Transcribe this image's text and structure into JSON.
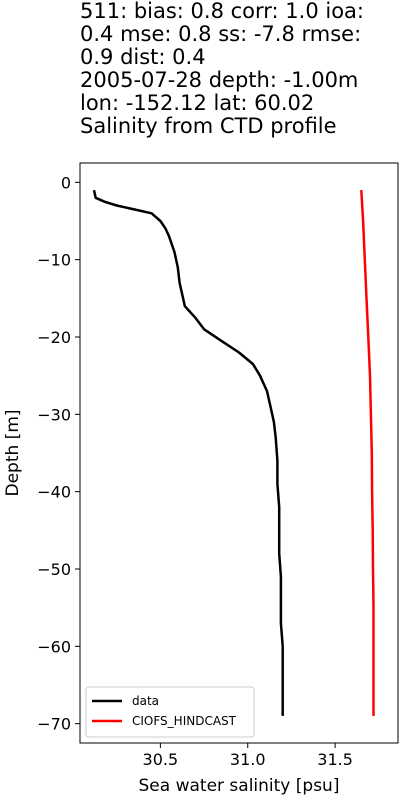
{
  "chart_data": {
    "type": "line",
    "title_lines": [
      "511: bias: 0.8  corr: 1.0  ioa:",
      "0.4  mse: 0.8  ss: -7.8  rmse:",
      "0.9  dist: 0.4",
      "2005-07-28 depth: -1.00m",
      "lon: -152.12 lat: 60.02",
      "Salinity from CTD profile"
    ],
    "xlabel": "Sea water salinity [psu]",
    "ylabel": "Depth [m]",
    "xlim": [
      30.04,
      31.86
    ],
    "ylim": [
      -72.5,
      2.5
    ],
    "x_ticks": [
      30.5,
      31.0,
      31.5
    ],
    "x_tick_labels": [
      "30.5",
      "31.0",
      "31.5"
    ],
    "y_ticks": [
      0,
      -10,
      -20,
      -30,
      -40,
      -50,
      -60,
      -70
    ],
    "y_tick_labels": [
      "0",
      "−10",
      "−20",
      "−30",
      "−40",
      "−50",
      "−60",
      "−70"
    ],
    "grid": false,
    "legend_position": "lower-left",
    "series": [
      {
        "name": "data",
        "color": "#000000",
        "points": [
          [
            30.12,
            -1
          ],
          [
            30.13,
            -2
          ],
          [
            30.18,
            -2.5
          ],
          [
            30.25,
            -3
          ],
          [
            30.35,
            -3.5
          ],
          [
            30.45,
            -4
          ],
          [
            30.5,
            -5
          ],
          [
            30.53,
            -6
          ],
          [
            30.55,
            -7
          ],
          [
            30.58,
            -9
          ],
          [
            30.6,
            -11
          ],
          [
            30.61,
            -13
          ],
          [
            30.63,
            -15
          ],
          [
            30.64,
            -16
          ],
          [
            30.7,
            -17.5
          ],
          [
            30.75,
            -19
          ],
          [
            30.85,
            -20.5
          ],
          [
            30.95,
            -22
          ],
          [
            31.03,
            -23.5
          ],
          [
            31.07,
            -25
          ],
          [
            31.11,
            -27
          ],
          [
            31.13,
            -29
          ],
          [
            31.15,
            -31
          ],
          [
            31.16,
            -33
          ],
          [
            31.17,
            -36
          ],
          [
            31.17,
            -39
          ],
          [
            31.18,
            -42
          ],
          [
            31.18,
            -45
          ],
          [
            31.18,
            -48
          ],
          [
            31.19,
            -51
          ],
          [
            31.19,
            -54
          ],
          [
            31.19,
            -57
          ],
          [
            31.2,
            -60
          ],
          [
            31.2,
            -64
          ],
          [
            31.2,
            -69
          ]
        ]
      },
      {
        "name": "CIOFS_HINDCAST",
        "color": "#ff0000",
        "points": [
          [
            31.65,
            -1
          ],
          [
            31.66,
            -5
          ],
          [
            31.67,
            -10
          ],
          [
            31.68,
            -15
          ],
          [
            31.69,
            -20
          ],
          [
            31.7,
            -25
          ],
          [
            31.705,
            -30
          ],
          [
            31.71,
            -35
          ],
          [
            31.712,
            -40
          ],
          [
            31.715,
            -45
          ],
          [
            31.717,
            -50
          ],
          [
            31.72,
            -55
          ],
          [
            31.72,
            -60
          ],
          [
            31.72,
            -65
          ],
          [
            31.72,
            -69
          ]
        ]
      }
    ]
  }
}
